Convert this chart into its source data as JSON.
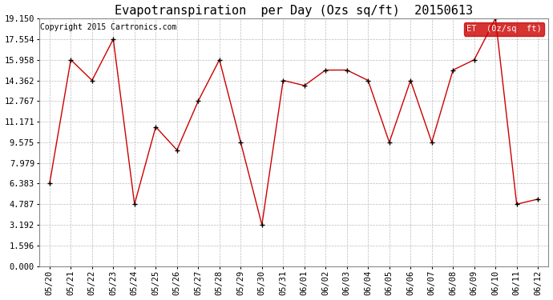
{
  "title": "Evapotranspiration  per Day (Ozs sq/ft)  20150613",
  "copyright_text": "Copyright 2015 Cartronics.com",
  "legend_label": "ET  (0z/sq  ft)",
  "x_labels": [
    "05/20",
    "05/21",
    "05/22",
    "05/23",
    "05/24",
    "05/25",
    "05/26",
    "05/27",
    "05/28",
    "05/29",
    "05/30",
    "05/31",
    "06/01",
    "06/02",
    "06/03",
    "06/04",
    "06/05",
    "06/06",
    "06/07",
    "06/08",
    "06/09",
    "06/10",
    "06/11",
    "06/12"
  ],
  "y_values": [
    6.383,
    15.958,
    14.362,
    17.554,
    4.787,
    10.771,
    8.979,
    12.767,
    15.958,
    9.575,
    3.192,
    14.362,
    13.967,
    15.162,
    15.162,
    14.362,
    9.575,
    14.362,
    9.575,
    15.162,
    15.958,
    19.15,
    4.787,
    5.183
  ],
  "yticks": [
    0.0,
    1.596,
    3.192,
    4.787,
    6.383,
    7.979,
    9.575,
    11.171,
    12.767,
    14.362,
    15.958,
    17.554,
    19.15
  ],
  "ylim": [
    0.0,
    19.15
  ],
  "line_color": "#cc0000",
  "marker": "+",
  "marker_color": "#000000",
  "marker_size": 4,
  "marker_linewidth": 1.0,
  "bg_color": "#ffffff",
  "grid_color": "#bbbbbb",
  "title_fontsize": 11,
  "tick_fontsize": 7.5,
  "copyright_fontsize": 7,
  "legend_bg": "#cc0000",
  "legend_text_color": "#ffffff",
  "legend_fontsize": 7.5,
  "line_width": 1.0
}
